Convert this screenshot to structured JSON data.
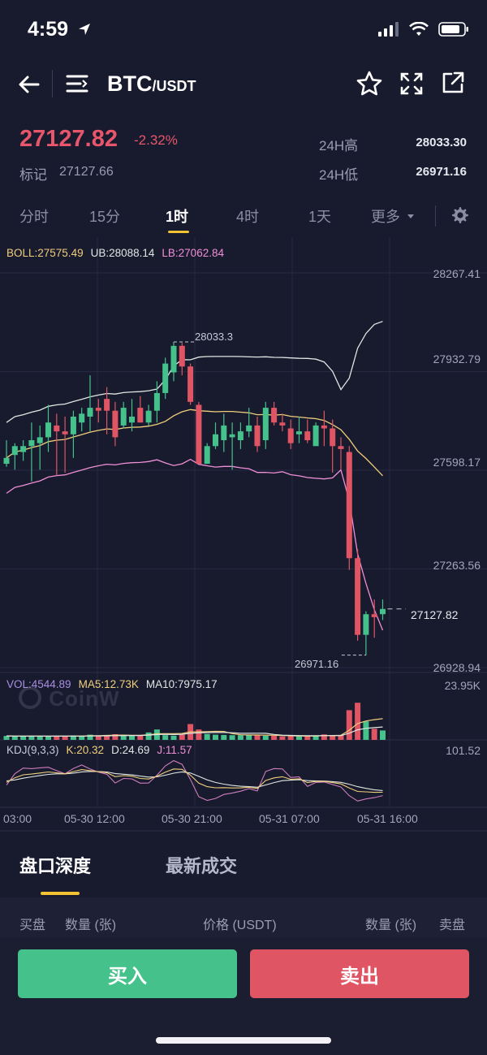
{
  "status_bar": {
    "time": "4:59"
  },
  "header": {
    "pair_base": "BTC",
    "pair_quote": "/USDT"
  },
  "price": {
    "last": "27127.82",
    "change": "-2.32%",
    "mark_label": "标记",
    "mark_value": "27127.66",
    "high_label": "24H高",
    "high_value": "28033.30",
    "low_label": "24H低",
    "low_value": "26971.16"
  },
  "tabs": [
    {
      "label": "分时"
    },
    {
      "label": "15分"
    },
    {
      "label": "1时"
    },
    {
      "label": "4时"
    },
    {
      "label": "1天"
    },
    {
      "label": "更多"
    }
  ],
  "active_tab": "1时",
  "indicators": {
    "boll": "BOLL:27575.49",
    "ub": "UB:28088.14",
    "lb": "LB:27062.84",
    "vol": "VOL:4544.89",
    "ma5": "MA5:12.73K",
    "ma10": "MA10:7975.17",
    "kdj": "KDJ(9,3,3)",
    "k": "K:20.32",
    "d": "D:24.69",
    "j": "J:11.57"
  },
  "price_axis": [
    "28267.41",
    "27932.79",
    "27598.17",
    "27263.56",
    "26928.94"
  ],
  "current_price_tag": "27127.82",
  "high_marker": "28033.3",
  "low_marker": "26971.16",
  "volume_axis_max": "23.95K",
  "kdj_axis_max": "101.52",
  "time_axis": [
    "03:00",
    "05-30 12:00",
    "05-30 21:00",
    "05-31 07:00",
    "05-31 16:00"
  ],
  "watermark": "CoinW",
  "bottom_tabs": {
    "depth": "盘口深度",
    "trades": "最新成交"
  },
  "book_header": {
    "buy_side": "买盘",
    "qty_left": "数量 (张)",
    "price": "价格 (USDT)",
    "qty_right": "数量 (张)",
    "sell_side": "卖盘"
  },
  "actions": {
    "buy": "买入",
    "sell": "卖出"
  },
  "colors": {
    "up": "#45c28b",
    "down": "#e05564",
    "accent": "#f3c233",
    "background": "#181a2e",
    "boll_mid": "#f0cf7c",
    "boll_upper": "#dfe7e3",
    "boll_lower": "#ef8fd6"
  },
  "chart_data": {
    "type": "candlestick",
    "interval": "1时",
    "symbol": "BTC/USDT",
    "ylim": [
      26928.94,
      28267.41
    ],
    "y_ticks": [
      28267.41,
      27932.79,
      27598.17,
      27263.56,
      26928.94
    ],
    "x_tick_labels": [
      "03:00",
      "05-30 12:00",
      "05-30 21:00",
      "05-31 07:00",
      "05-31 16:00"
    ],
    "candles": [
      {
        "o": 27620,
        "h": 27700,
        "l": 27610,
        "c": 27640
      },
      {
        "o": 27650,
        "h": 27690,
        "l": 27600,
        "c": 27680
      },
      {
        "o": 27660,
        "h": 27700,
        "l": 27630,
        "c": 27680
      },
      {
        "o": 27680,
        "h": 27760,
        "l": 27560,
        "c": 27700
      },
      {
        "o": 27690,
        "h": 27750,
        "l": 27600,
        "c": 27710
      },
      {
        "o": 27710,
        "h": 27820,
        "l": 27660,
        "c": 27760
      },
      {
        "o": 27750,
        "h": 27790,
        "l": 27580,
        "c": 27730
      },
      {
        "o": 27730,
        "h": 27780,
        "l": 27590,
        "c": 27720
      },
      {
        "o": 27720,
        "h": 27800,
        "l": 27640,
        "c": 27780
      },
      {
        "o": 27760,
        "h": 27810,
        "l": 27730,
        "c": 27790
      },
      {
        "o": 27780,
        "h": 27920,
        "l": 27730,
        "c": 27810
      },
      {
        "o": 27810,
        "h": 27840,
        "l": 27760,
        "c": 27800
      },
      {
        "o": 27840,
        "h": 27880,
        "l": 27720,
        "c": 27800
      },
      {
        "o": 27800,
        "h": 27830,
        "l": 27680,
        "c": 27710
      },
      {
        "o": 27750,
        "h": 27830,
        "l": 27740,
        "c": 27810
      },
      {
        "o": 27760,
        "h": 27840,
        "l": 27730,
        "c": 27780
      },
      {
        "o": 27810,
        "h": 27850,
        "l": 27760,
        "c": 27760
      },
      {
        "o": 27760,
        "h": 27820,
        "l": 27750,
        "c": 27800
      },
      {
        "o": 27800,
        "h": 27900,
        "l": 27760,
        "c": 27860
      },
      {
        "o": 27860,
        "h": 27980,
        "l": 27840,
        "c": 27960
      },
      {
        "o": 27930,
        "h": 28033.3,
        "l": 27900,
        "c": 28020
      },
      {
        "o": 28020,
        "h": 28030,
        "l": 27920,
        "c": 27950
      },
      {
        "o": 27950,
        "h": 27960,
        "l": 27820,
        "c": 27830
      },
      {
        "o": 27820,
        "h": 27830,
        "l": 27620,
        "c": 27620
      },
      {
        "o": 27620,
        "h": 27690,
        "l": 27620,
        "c": 27680
      },
      {
        "o": 27680,
        "h": 27760,
        "l": 27670,
        "c": 27720
      },
      {
        "o": 27700,
        "h": 27790,
        "l": 27660,
        "c": 27750
      },
      {
        "o": 27710,
        "h": 27760,
        "l": 27600,
        "c": 27720
      },
      {
        "o": 27700,
        "h": 27760,
        "l": 27670,
        "c": 27730
      },
      {
        "o": 27730,
        "h": 27810,
        "l": 27710,
        "c": 27750
      },
      {
        "o": 27750,
        "h": 27780,
        "l": 27660,
        "c": 27680
      },
      {
        "o": 27700,
        "h": 27830,
        "l": 27670,
        "c": 27810
      },
      {
        "o": 27810,
        "h": 27830,
        "l": 27750,
        "c": 27760
      },
      {
        "o": 27760,
        "h": 27790,
        "l": 27730,
        "c": 27750
      },
      {
        "o": 27740,
        "h": 27770,
        "l": 27670,
        "c": 27690
      },
      {
        "o": 27720,
        "h": 27780,
        "l": 27690,
        "c": 27730
      },
      {
        "o": 27730,
        "h": 27770,
        "l": 27690,
        "c": 27700
      },
      {
        "o": 27680,
        "h": 27760,
        "l": 27690,
        "c": 27750
      },
      {
        "o": 27750,
        "h": 27800,
        "l": 27680,
        "c": 27740
      },
      {
        "o": 27740,
        "h": 27770,
        "l": 27590,
        "c": 27680
      },
      {
        "o": 27680,
        "h": 27710,
        "l": 27600,
        "c": 27670
      },
      {
        "o": 27660,
        "h": 27680,
        "l": 27260,
        "c": 27300
      },
      {
        "o": 27300,
        "h": 27330,
        "l": 27020,
        "c": 27040
      },
      {
        "o": 27040,
        "h": 27120,
        "l": 26971.16,
        "c": 27110
      },
      {
        "o": 27110,
        "h": 27160,
        "l": 27030,
        "c": 27100
      },
      {
        "o": 27110,
        "h": 27160,
        "l": 27090,
        "c": 27127.82
      }
    ],
    "volume": {
      "ylim": [
        0,
        23950
      ],
      "values": [
        1600,
        1500,
        1400,
        1700,
        1500,
        1300,
        1600,
        1400,
        1800,
        1500,
        2100,
        1700,
        1900,
        2300,
        1600,
        1700,
        1800,
        3000,
        4200,
        1900,
        1700,
        2100,
        6400,
        4200,
        2400,
        2100,
        2000,
        1900,
        1900,
        2000,
        2000,
        1700,
        1700,
        1400,
        1500,
        1400,
        1700,
        1700,
        2200,
        1800,
        1900,
        12000,
        15000,
        7500,
        4500,
        3800
      ]
    }
  }
}
